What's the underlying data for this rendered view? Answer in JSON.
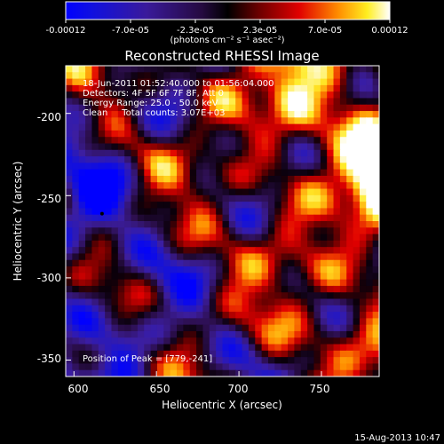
{
  "chart_data": {
    "type": "heatmap",
    "title": "Reconstructed RHESSI Image",
    "xlabel": "Heliocentric X (arcsec)",
    "ylabel": "Heliocentric Y (arcsec)",
    "xlim": [
      595,
      785
    ],
    "ylim": [
      -360,
      -171
    ],
    "xticks": [
      "600",
      "650",
      "700",
      "750"
    ],
    "xtick_values": [
      600,
      650,
      700,
      750
    ],
    "yticks": [
      "-200",
      "-250",
      "-300",
      "-350"
    ],
    "ytick_values": [
      -200,
      -250,
      -300,
      -350
    ],
    "colorbar": {
      "ticks": [
        "-0.00012",
        "-7.0e-05",
        "-2.3e-05",
        "2.3e-05",
        "7.0e-05",
        "0.00012"
      ],
      "range": [
        -0.00012,
        0.00012
      ],
      "unit_label": "(photons cm⁻² s⁻¹ asec⁻²)",
      "colors": [
        "#0000ff",
        "#000000",
        "#ff0000",
        "#ffffff"
      ]
    },
    "annotations": [
      "18-Jun-2011 01:52:40.000 to 01:56:04.000",
      "Detectors: 4F 5F 6F 7F 8F, Att 0",
      "Energy Range: 25.0 - 50.0 keV",
      "Clean     Total counts: 3.07E+03"
    ],
    "peak_text": "Position of Peak = [779,-241]",
    "peak": [
      779,
      -241
    ],
    "marker": [
      617,
      -261
    ]
  },
  "footer_date": "15-Aug-2013 10:47"
}
